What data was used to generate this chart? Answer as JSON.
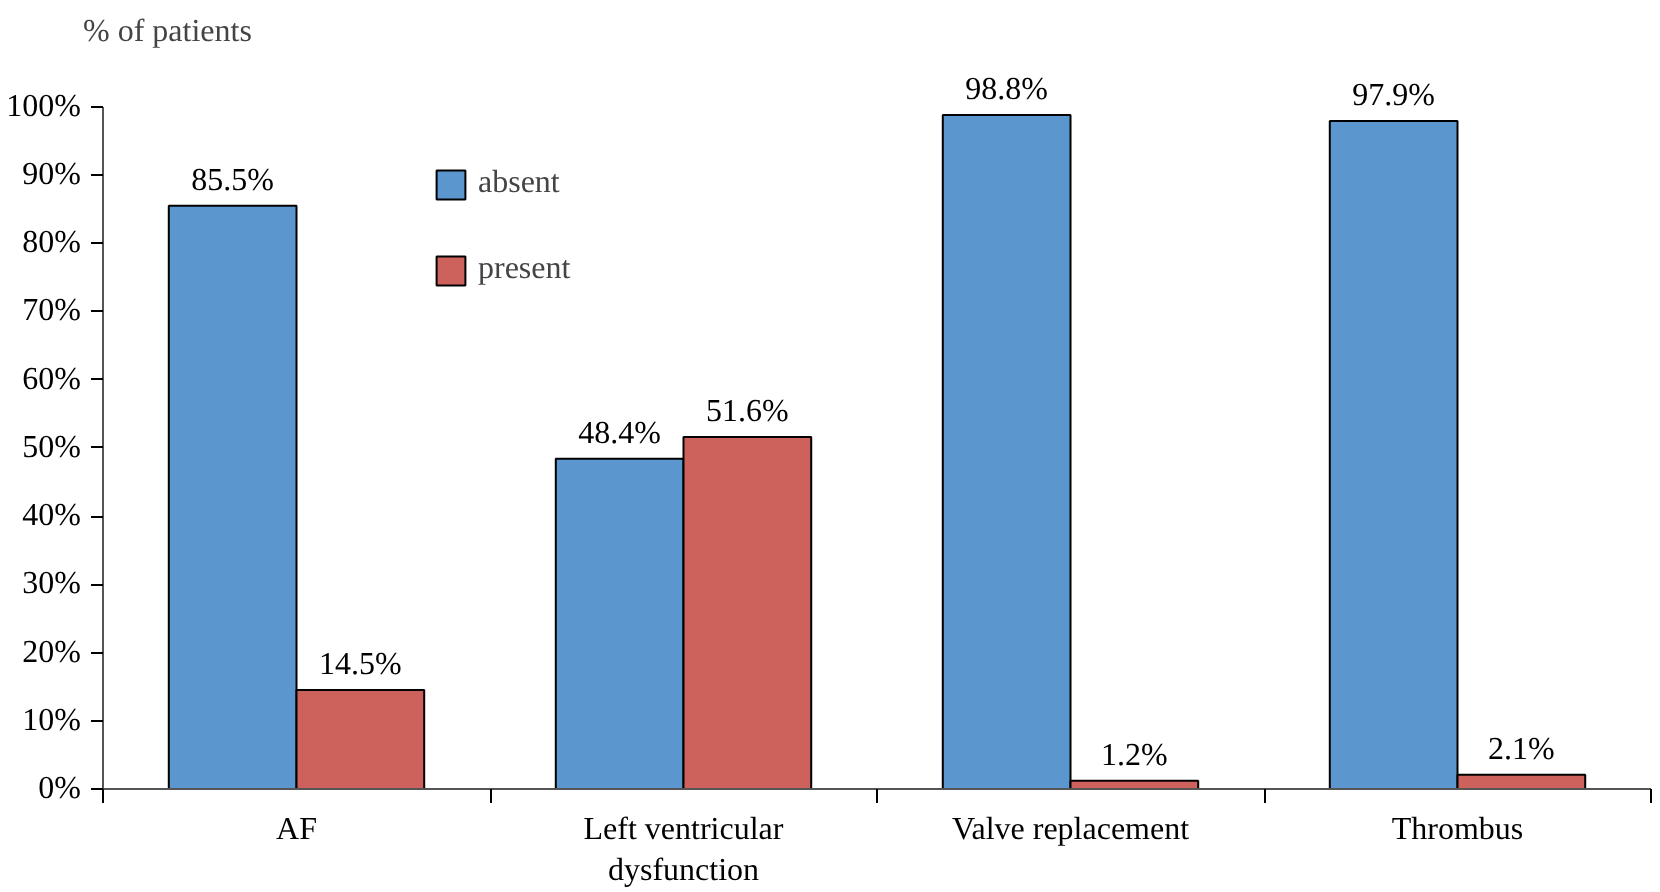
{
  "chart_data": {
    "type": "bar",
    "ylabel": "% of patients",
    "categories": [
      "AF",
      "Left ventricular\ndysfunction",
      "Valve replacement",
      "Thrombus"
    ],
    "series": [
      {
        "name": "absent",
        "color": "#5b96cf",
        "values": [
          85.5,
          48.4,
          98.8,
          97.9
        ],
        "value_labels": [
          "85.5%",
          "48.4%",
          "98.8%",
          "97.9%"
        ]
      },
      {
        "name": "present",
        "color": "#cd625d",
        "values": [
          14.5,
          51.6,
          1.2,
          2.1
        ],
        "value_labels": [
          "14.5%",
          "51.6%",
          "1.2%",
          "2.1%"
        ]
      }
    ],
    "ylim": [
      0,
      100
    ],
    "yticks": [
      {
        "value": 0,
        "label": "0%"
      },
      {
        "value": 10,
        "label": "10%"
      },
      {
        "value": 20,
        "label": "20%"
      },
      {
        "value": 30,
        "label": "30%"
      },
      {
        "value": 40,
        "label": "40%"
      },
      {
        "value": 50,
        "label": "50%"
      },
      {
        "value": 60,
        "label": "60%"
      },
      {
        "value": 70,
        "label": "70%"
      },
      {
        "value": 80,
        "label": "80%"
      },
      {
        "value": 90,
        "label": "90%"
      },
      {
        "value": 100,
        "label": "100%"
      }
    ],
    "grid": false,
    "legend": "top"
  }
}
